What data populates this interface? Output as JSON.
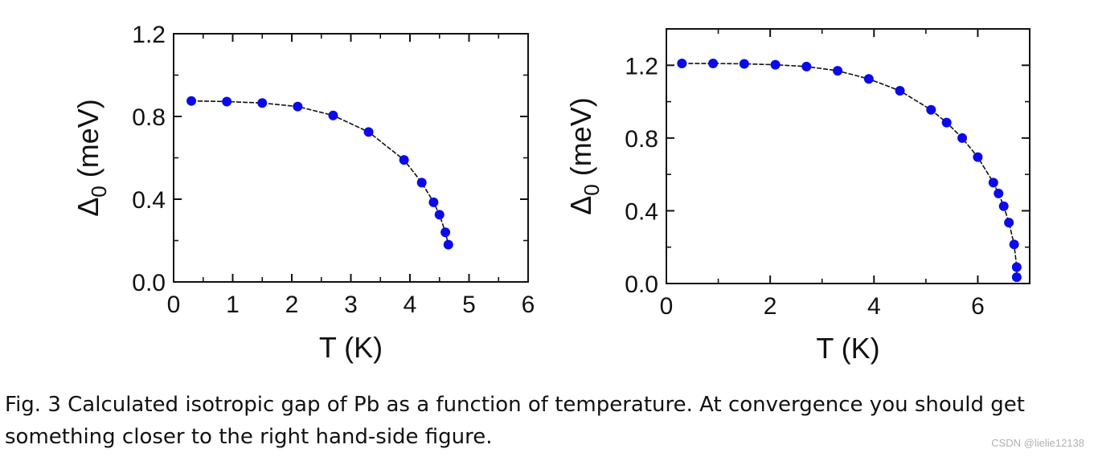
{
  "chart_data": [
    {
      "type": "line",
      "marker": "circle",
      "title": "",
      "xlabel": "T (K)",
      "ylabel": "Δ0 (meV)",
      "ylabel_main": "Δ",
      "ylabel_sub": "0",
      "ylabel_rest": " (meV)",
      "xlim": [
        0,
        6
      ],
      "ylim": [
        0,
        1.2
      ],
      "xticks": [
        "0",
        "1",
        "2",
        "3",
        "4",
        "5",
        "6"
      ],
      "xtick_values": [
        0,
        1,
        2,
        3,
        4,
        5,
        6
      ],
      "yticks": [
        "0.0",
        "0.4",
        "0.8",
        "1.2"
      ],
      "ytick_values": [
        0,
        0.4,
        0.8,
        1.2
      ],
      "series": [
        {
          "name": "Δ0",
          "color": "#0a0aea",
          "x": [
            0.3,
            0.9,
            1.5,
            2.1,
            2.7,
            3.3,
            3.9,
            4.2,
            4.4,
            4.5,
            4.6,
            4.65
          ],
          "y": [
            0.875,
            0.872,
            0.865,
            0.848,
            0.805,
            0.725,
            0.59,
            0.48,
            0.385,
            0.325,
            0.24,
            0.18
          ]
        }
      ]
    },
    {
      "type": "line",
      "marker": "circle",
      "title": "",
      "xlabel": "T (K)",
      "ylabel": "Δ0 (meV)",
      "ylabel_main": "Δ",
      "ylabel_sub": "0",
      "ylabel_rest": " (meV)",
      "xlim": [
        0,
        7
      ],
      "ylim": [
        0,
        1.4
      ],
      "xticks": [
        "0",
        "2",
        "4",
        "6"
      ],
      "xtick_values": [
        0,
        2,
        4,
        6
      ],
      "yticks": [
        "0.0",
        "0.4",
        "0.8",
        "1.2"
      ],
      "ytick_values": [
        0,
        0.4,
        0.8,
        1.2
      ],
      "series": [
        {
          "name": "Δ0",
          "color": "#0a0aea",
          "x": [
            0.3,
            0.9,
            1.5,
            2.1,
            2.7,
            3.3,
            3.9,
            4.5,
            5.1,
            5.4,
            5.7,
            6.0,
            6.3,
            6.4,
            6.5,
            6.6,
            6.7,
            6.75,
            6.75
          ],
          "y": [
            1.21,
            1.21,
            1.208,
            1.203,
            1.193,
            1.17,
            1.125,
            1.06,
            0.955,
            0.885,
            0.8,
            0.695,
            0.555,
            0.495,
            0.425,
            0.335,
            0.215,
            0.09,
            0.035
          ]
        }
      ]
    }
  ],
  "caption": "Fig. 3 Calculated isotropic gap of Pb as a function of temperature.  At convergence you should get something closer to the right hand-side figure.",
  "watermark": "CSDN @lielie12138"
}
